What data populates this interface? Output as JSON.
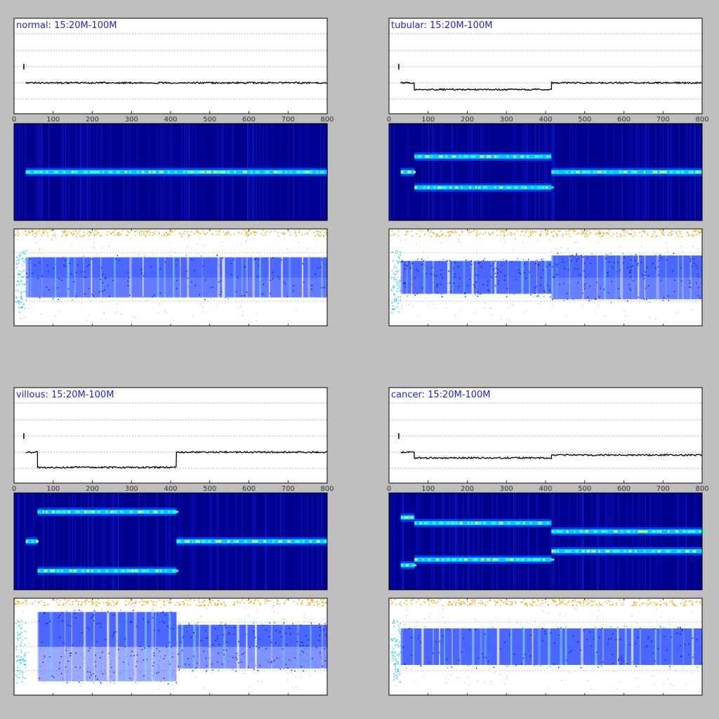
{
  "x_axis": {
    "min": 0,
    "max": 800,
    "ticks": [
      0,
      100,
      200,
      300,
      400,
      500,
      600,
      700,
      800
    ]
  },
  "colors": {
    "background": "#bfbfbf",
    "title": "#1f1fe6",
    "line": "#000000",
    "heatmap_bg": "#00008f",
    "heatmap_band": "#40ffbf",
    "scatter_main": "#1a3cff",
    "scatter_light": "#00d5ff",
    "scatter_top": "#ffa500"
  },
  "chart_data": [
    {
      "title": "normal: 15:20M-100M",
      "type": "line",
      "segments": [
        [
          30,
          800,
          0.0
        ]
      ],
      "heatmap_bands": [
        [
          [
            30,
            800,
            0.0
          ]
        ]
      ],
      "scatter_blocks": [
        [
          30,
          800,
          0.55,
          0.8
        ]
      ]
    },
    {
      "title": "tubular: 15:20M-100M",
      "type": "line",
      "segments": [
        [
          30,
          65,
          0.0
        ],
        [
          65,
          415,
          -0.35
        ],
        [
          415,
          800,
          0.0
        ]
      ],
      "heatmap_bands": [
        [
          [
            30,
            65,
            0.0
          ]
        ],
        [
          [
            65,
            415,
            0.55
          ],
          [
            65,
            415,
            -0.55
          ]
        ],
        [
          [
            415,
            800,
            0.0
          ]
        ]
      ],
      "scatter_blocks": [
        [
          30,
          415,
          0.45,
          0.95
        ],
        [
          415,
          800,
          0.6,
          0.75
        ]
      ]
    },
    {
      "title": "villous: 15:20M-100M",
      "type": "line",
      "segments": [
        [
          30,
          60,
          0.0
        ],
        [
          60,
          415,
          -0.8
        ],
        [
          415,
          800,
          0.0
        ]
      ],
      "heatmap_bands": [
        [
          [
            30,
            60,
            0.0
          ]
        ],
        [
          [
            60,
            415,
            1.05
          ],
          [
            60,
            415,
            -1.05
          ]
        ],
        [
          [
            415,
            800,
            0.0
          ]
        ]
      ],
      "scatter_blocks": [
        [
          60,
          415,
          0.95,
          0.3
        ],
        [
          415,
          800,
          0.6,
          0.55
        ]
      ]
    },
    {
      "title": "cancer: 15:20M-100M",
      "type": "line",
      "segments": [
        [
          30,
          65,
          0.0
        ],
        [
          65,
          415,
          -0.3
        ],
        [
          415,
          800,
          -0.15
        ]
      ],
      "heatmap_bands": [
        [
          [
            30,
            65,
            0.85
          ],
          [
            30,
            65,
            -0.85
          ]
        ],
        [
          [
            65,
            415,
            0.65
          ],
          [
            65,
            415,
            -0.65
          ]
        ],
        [
          [
            415,
            800,
            0.35
          ],
          [
            415,
            800,
            -0.35
          ]
        ]
      ],
      "scatter_blocks": [
        [
          30,
          800,
          0.5,
          1.0
        ]
      ]
    }
  ]
}
